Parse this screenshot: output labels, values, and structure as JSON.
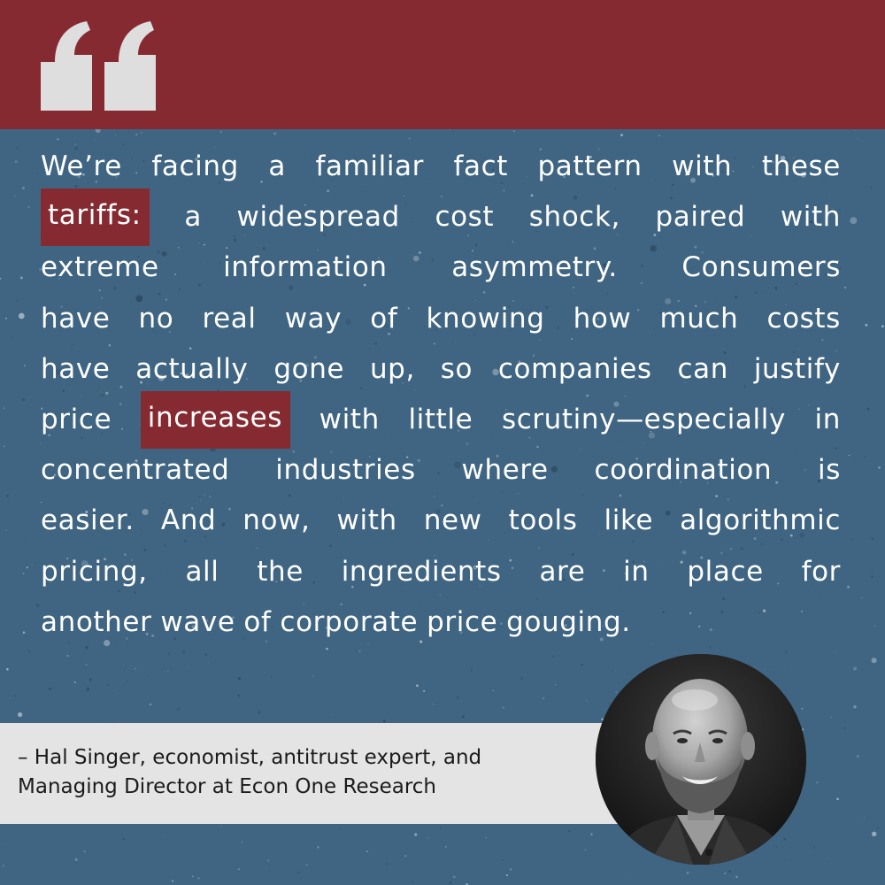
{
  "quote": {
    "lines": [
      [
        "We’re",
        "facing",
        "a",
        "familiar",
        "fact",
        "pattern",
        "with",
        "these"
      ],
      [
        "tariffs:",
        "a",
        "widespread",
        "cost",
        "shock,",
        "paired",
        "with"
      ],
      [
        "extreme",
        "information",
        "asymmetry.",
        "Consumers"
      ],
      [
        "have",
        "no",
        "real",
        "way",
        "of",
        "knowing",
        "how",
        "much",
        "costs"
      ],
      [
        "have",
        "actually",
        "gone",
        "up,",
        "so",
        "companies",
        "can",
        "justify"
      ],
      [
        "price",
        "increases",
        "with",
        "little",
        "scrutiny—especially",
        "in"
      ],
      [
        "concentrated",
        "industries",
        "where",
        "coordination",
        "is"
      ],
      [
        "easier.",
        "And",
        "now,",
        "with",
        "new",
        "tools",
        "like",
        "algorithmic"
      ],
      [
        "pricing,",
        "all",
        "the",
        "ingredients",
        "are",
        "in",
        "place",
        "for"
      ],
      [
        "another",
        "wave",
        "of",
        "corporate",
        "price",
        "gouging."
      ]
    ],
    "highlighted_words": [
      "tariffs:",
      "increases"
    ]
  },
  "attribution": {
    "line1": "– Hal Singer, economist, antitrust expert, and",
    "line2": "Managing Director at Econ One Research"
  },
  "colors": {
    "background": "#3f6583",
    "accent": "#862a31",
    "attribution_band": "#e4e4e4",
    "quote_mark": "#dedede"
  },
  "icons": {
    "quote_mark": "open-quote-icon",
    "portrait": "portrait-photo"
  }
}
